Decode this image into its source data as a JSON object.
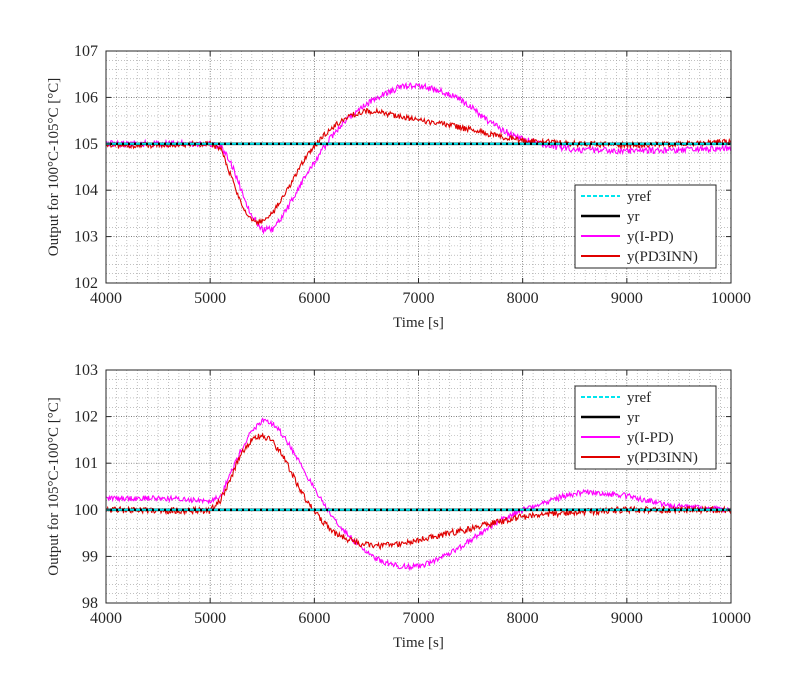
{
  "chart_data": [
    {
      "type": "line",
      "xlabel": "Time [s]",
      "ylabel": "Output for 100°C-105°C [°C]",
      "xlim": [
        4000,
        10000
      ],
      "ylim": [
        102,
        107
      ],
      "xticks": [
        4000,
        5000,
        6000,
        7000,
        8000,
        9000,
        10000
      ],
      "yticks": [
        102,
        103,
        104,
        105,
        106,
        107
      ],
      "grid": "major and minor, dotted",
      "legend_position": "lower-right",
      "series": [
        {
          "name": "yref",
          "color": "#00e5ee",
          "style": "dashed",
          "points": [
            [
              4000,
              105
            ],
            [
              10000,
              105
            ]
          ]
        },
        {
          "name": "yr",
          "color": "#000000",
          "style": "solid",
          "points": [
            [
              4000,
              105
            ],
            [
              10000,
              105
            ]
          ]
        },
        {
          "name": "y(I-PD)",
          "color": "#ff00ff",
          "style": "solid",
          "noise": 0.07,
          "points": [
            [
              4000,
              105.0
            ],
            [
              5000,
              105.0
            ],
            [
              5100,
              104.95
            ],
            [
              5200,
              104.6
            ],
            [
              5300,
              104.0
            ],
            [
              5400,
              103.45
            ],
            [
              5500,
              103.15
            ],
            [
              5600,
              103.15
            ],
            [
              5700,
              103.45
            ],
            [
              5800,
              103.85
            ],
            [
              5900,
              104.25
            ],
            [
              6000,
              104.6
            ],
            [
              6100,
              104.95
            ],
            [
              6200,
              105.25
            ],
            [
              6300,
              105.5
            ],
            [
              6400,
              105.7
            ],
            [
              6500,
              105.85
            ],
            [
              6600,
              106.0
            ],
            [
              6700,
              106.1
            ],
            [
              6800,
              106.2
            ],
            [
              6900,
              106.25
            ],
            [
              7000,
              106.25
            ],
            [
              7100,
              106.2
            ],
            [
              7200,
              106.15
            ],
            [
              7300,
              106.05
            ],
            [
              7400,
              105.95
            ],
            [
              7500,
              105.8
            ],
            [
              7600,
              105.6
            ],
            [
              7700,
              105.45
            ],
            [
              7800,
              105.3
            ],
            [
              7900,
              105.2
            ],
            [
              8000,
              105.1
            ],
            [
              8200,
              104.98
            ],
            [
              8500,
              104.88
            ],
            [
              9000,
              104.85
            ],
            [
              9500,
              104.87
            ],
            [
              10000,
              104.9
            ]
          ]
        },
        {
          "name": "y(PD3INN)",
          "color": "#e00000",
          "style": "solid",
          "noise": 0.06,
          "points": [
            [
              4000,
              104.95
            ],
            [
              5000,
              105.0
            ],
            [
              5100,
              104.9
            ],
            [
              5200,
              104.3
            ],
            [
              5300,
              103.7
            ],
            [
              5400,
              103.35
            ],
            [
              5500,
              103.3
            ],
            [
              5600,
              103.5
            ],
            [
              5700,
              103.85
            ],
            [
              5800,
              104.25
            ],
            [
              5900,
              104.65
            ],
            [
              6000,
              104.95
            ],
            [
              6100,
              105.2
            ],
            [
              6200,
              105.4
            ],
            [
              6300,
              105.55
            ],
            [
              6400,
              105.65
            ],
            [
              6500,
              105.7
            ],
            [
              6600,
              105.7
            ],
            [
              6700,
              105.65
            ],
            [
              6800,
              105.6
            ],
            [
              6900,
              105.55
            ],
            [
              7000,
              105.5
            ],
            [
              7200,
              105.45
            ],
            [
              7400,
              105.35
            ],
            [
              7600,
              105.25
            ],
            [
              7800,
              105.15
            ],
            [
              8000,
              105.08
            ],
            [
              8500,
              105.0
            ],
            [
              9000,
              104.97
            ],
            [
              9500,
              105.0
            ],
            [
              10000,
              105.05
            ]
          ]
        }
      ]
    },
    {
      "type": "line",
      "xlabel": "Time [s]",
      "ylabel": "Output for 105°C-100°C [°C]",
      "xlim": [
        4000,
        10000
      ],
      "ylim": [
        98,
        103
      ],
      "xticks": [
        4000,
        5000,
        6000,
        7000,
        8000,
        9000,
        10000
      ],
      "yticks": [
        98,
        99,
        100,
        101,
        102,
        103
      ],
      "grid": "major and minor, dotted",
      "legend_position": "upper-right",
      "series": [
        {
          "name": "yref",
          "color": "#00e5ee",
          "style": "dashed",
          "points": [
            [
              4000,
              100
            ],
            [
              10000,
              100
            ]
          ]
        },
        {
          "name": "yr",
          "color": "#000000",
          "style": "solid",
          "points": [
            [
              4000,
              100
            ],
            [
              10000,
              100
            ]
          ]
        },
        {
          "name": "y(I-PD)",
          "color": "#ff00ff",
          "style": "solid",
          "noise": 0.06,
          "points": [
            [
              4000,
              100.25
            ],
            [
              4500,
              100.25
            ],
            [
              5000,
              100.2
            ],
            [
              5100,
              100.3
            ],
            [
              5200,
              100.8
            ],
            [
              5300,
              101.3
            ],
            [
              5400,
              101.7
            ],
            [
              5500,
              101.9
            ],
            [
              5600,
              101.85
            ],
            [
              5700,
              101.6
            ],
            [
              5800,
              101.25
            ],
            [
              5900,
              100.85
            ],
            [
              6000,
              100.45
            ],
            [
              6100,
              100.1
            ],
            [
              6200,
              99.8
            ],
            [
              6300,
              99.5
            ],
            [
              6400,
              99.3
            ],
            [
              6500,
              99.1
            ],
            [
              6600,
              98.95
            ],
            [
              6700,
              98.85
            ],
            [
              6800,
              98.8
            ],
            [
              6900,
              98.78
            ],
            [
              7000,
              98.8
            ],
            [
              7100,
              98.85
            ],
            [
              7200,
              98.95
            ],
            [
              7300,
              99.05
            ],
            [
              7400,
              99.2
            ],
            [
              7500,
              99.35
            ],
            [
              7600,
              99.5
            ],
            [
              7700,
              99.65
            ],
            [
              7800,
              99.8
            ],
            [
              7900,
              99.9
            ],
            [
              8000,
              100.0
            ],
            [
              8200,
              100.15
            ],
            [
              8400,
              100.3
            ],
            [
              8600,
              100.38
            ],
            [
              8800,
              100.35
            ],
            [
              9000,
              100.3
            ],
            [
              9200,
              100.2
            ],
            [
              9400,
              100.1
            ],
            [
              9600,
              100.05
            ],
            [
              10000,
              100.0
            ]
          ]
        },
        {
          "name": "y(PD3INN)",
          "color": "#e00000",
          "style": "solid",
          "noise": 0.07,
          "points": [
            [
              4000,
              100.0
            ],
            [
              5000,
              99.98
            ],
            [
              5100,
              100.2
            ],
            [
              5200,
              100.7
            ],
            [
              5300,
              101.2
            ],
            [
              5400,
              101.5
            ],
            [
              5500,
              101.6
            ],
            [
              5600,
              101.45
            ],
            [
              5700,
              101.15
            ],
            [
              5800,
              100.7
            ],
            [
              5900,
              100.3
            ],
            [
              6000,
              99.95
            ],
            [
              6100,
              99.7
            ],
            [
              6200,
              99.5
            ],
            [
              6300,
              99.38
            ],
            [
              6400,
              99.3
            ],
            [
              6500,
              99.25
            ],
            [
              6600,
              99.22
            ],
            [
              6700,
              99.25
            ],
            [
              6800,
              99.28
            ],
            [
              6900,
              99.3
            ],
            [
              7000,
              99.35
            ],
            [
              7200,
              99.45
            ],
            [
              7400,
              99.55
            ],
            [
              7600,
              99.65
            ],
            [
              7800,
              99.75
            ],
            [
              8000,
              99.85
            ],
            [
              8200,
              99.9
            ],
            [
              8500,
              99.95
            ],
            [
              9000,
              100.0
            ],
            [
              9500,
              100.0
            ],
            [
              10000,
              100.0
            ]
          ]
        }
      ]
    }
  ]
}
